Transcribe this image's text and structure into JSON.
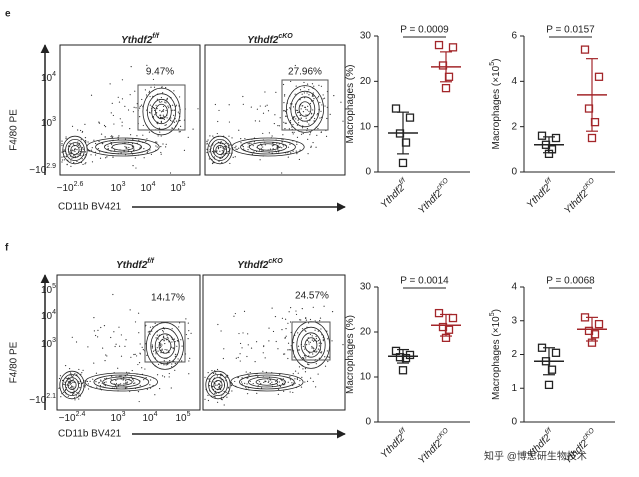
{
  "panels": [
    {
      "letter": "e",
      "flow": {
        "samples": [
          {
            "name": "Ythdf2",
            "sup": "f/f"
          },
          {
            "name": "Ythdf2",
            "sup": "cKO"
          }
        ],
        "ylabel": "F4/80 PE",
        "xlabel": "CD11b BV421",
        "yticks": [
          {
            "base": "10",
            "exp": "4"
          },
          {
            "base": "10",
            "exp": "3"
          },
          {
            "base": "−10",
            "exp": "2.9"
          }
        ],
        "xticks": [
          {
            "base": "−10",
            "exp": "2.6"
          },
          {
            "base": "10",
            "exp": "3"
          },
          {
            "base": "10",
            "exp": "4"
          },
          {
            "base": "10",
            "exp": "5"
          }
        ],
        "gates": [
          "9.47%",
          "27.96%"
        ]
      }
    },
    {
      "letter": "f",
      "flow": {
        "samples": [
          {
            "name": "Ythdf2",
            "sup": "f/f"
          },
          {
            "name": "Ythdf2",
            "sup": "cKO"
          }
        ],
        "ylabel": "F4/80 PE",
        "xlabel": "CD11b BV421",
        "yticks": [
          {
            "base": "10",
            "exp": "5"
          },
          {
            "base": "10",
            "exp": "4"
          },
          {
            "base": "10",
            "exp": "3"
          },
          {
            "base": "−10",
            "exp": "2.1"
          }
        ],
        "xticks": [
          {
            "base": "−10",
            "exp": "2.4"
          },
          {
            "base": "10",
            "exp": "3"
          },
          {
            "base": "10",
            "exp": "4"
          },
          {
            "base": "10",
            "exp": "5"
          }
        ],
        "gates": [
          "14.17%",
          "24.57%"
        ]
      }
    }
  ],
  "chart_data": [
    {
      "type": "dot",
      "ylabel": {
        "text": "Macrophages (%)"
      },
      "annotation": "P = 0.0009",
      "categories": [
        {
          "name": "Ythdf2",
          "sup": "f/f"
        },
        {
          "name": "Ythdf2",
          "sup": "cKO"
        }
      ],
      "groups": [
        {
          "color": "#222222",
          "values": [
            14,
            12,
            8.5,
            6.5,
            2
          ],
          "mean": 8.6,
          "sd": 4.6
        },
        {
          "color": "#a3262a",
          "values": [
            28,
            27.5,
            23.5,
            21,
            18.5
          ],
          "mean": 23.2,
          "sd": 3.3
        }
      ],
      "ylim": [
        0,
        30
      ],
      "yticks": [
        0,
        10,
        20,
        30
      ]
    },
    {
      "type": "dot",
      "ylabel": {
        "text": "Macrophages (×10",
        "sup": "5",
        "end": ")"
      },
      "annotation": "P = 0.0157",
      "categories": [
        {
          "name": "Ythdf2",
          "sup": "f/f"
        },
        {
          "name": "Ythdf2",
          "sup": "cKO"
        }
      ],
      "groups": [
        {
          "color": "#222222",
          "values": [
            1.6,
            1.5,
            1.2,
            1.0,
            0.8
          ],
          "mean": 1.2,
          "sd": 0.35
        },
        {
          "color": "#a3262a",
          "values": [
            5.4,
            4.2,
            2.8,
            2.2,
            1.5
          ],
          "mean": 3.4,
          "sd": 1.6
        }
      ],
      "ylim": [
        0,
        6
      ],
      "yticks": [
        0,
        2,
        4,
        6
      ]
    },
    {
      "type": "dot",
      "ylabel": {
        "text": "Macrophages (%)"
      },
      "annotation": "P = 0.0014",
      "categories": [
        {
          "name": "Ythdf2",
          "sup": "f/f"
        },
        {
          "name": "Ythdf2",
          "sup": "cKO"
        }
      ],
      "groups": [
        {
          "color": "#222222",
          "values": [
            15.8,
            14.9,
            14.4,
            14.2,
            11.5
          ],
          "mean": 14.6,
          "sd": 1.5
        },
        {
          "color": "#a3262a",
          "values": [
            24.2,
            23.1,
            21.1,
            20.5,
            18.7
          ],
          "mean": 21.5,
          "sd": 2.4
        }
      ],
      "ylim": [
        0,
        30
      ],
      "yticks": [
        0,
        10,
        20,
        30
      ]
    },
    {
      "type": "dot",
      "ylabel": {
        "text": "Macrophages (×10",
        "sup": "5",
        "end": ")"
      },
      "annotation": "P = 0.0068",
      "categories": [
        {
          "name": "Ythdf2",
          "sup": "f/f"
        },
        {
          "name": "Ythdf2",
          "sup": "cKO"
        }
      ],
      "groups": [
        {
          "color": "#222222",
          "values": [
            2.2,
            2.05,
            1.8,
            1.55,
            1.1
          ],
          "mean": 1.8,
          "sd": 0.4
        },
        {
          "color": "#a3262a",
          "values": [
            3.1,
            2.9,
            2.7,
            2.6,
            2.35
          ],
          "mean": 2.75,
          "sd": 0.35
        }
      ],
      "ylim": [
        0,
        4
      ],
      "yticks": [
        0,
        1,
        2,
        3,
        4
      ]
    }
  ],
  "watermark": "知乎 @博思研生物技术"
}
